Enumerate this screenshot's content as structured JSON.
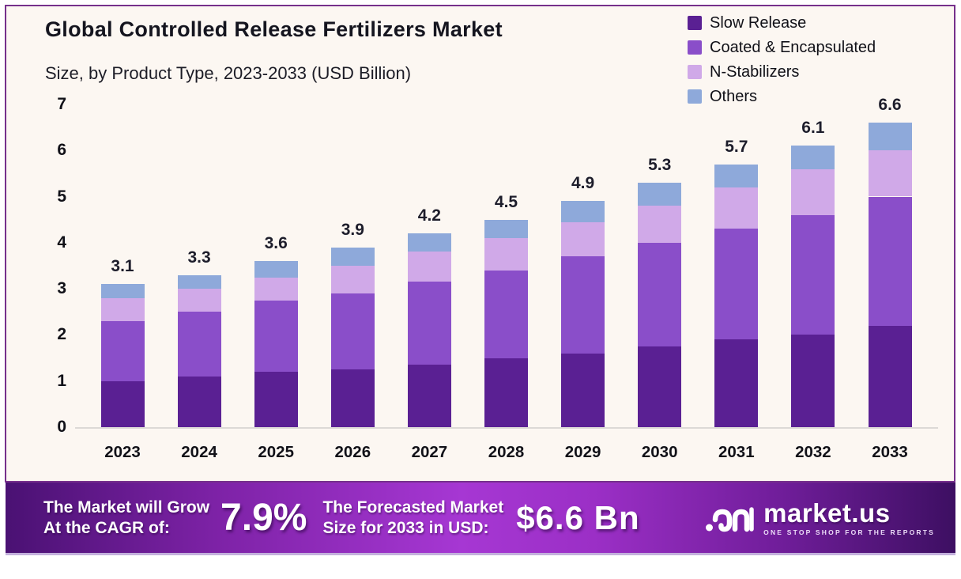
{
  "header": {
    "title": "Global Controlled Release Fertilizers Market",
    "subtitle": "Size, by Product Type, 2023-2033 (USD Billion)"
  },
  "colors": {
    "panel_background": "#fcf7f2",
    "frame_border": "#76308c",
    "banner_gradient_left": "#4a1173",
    "banner_gradient_mid": "#a637d3",
    "banner_gradient_right": "#3d0f62",
    "banner_text": "#ffffff"
  },
  "chart_data": {
    "type": "bar",
    "stacked": true,
    "title": "Global Controlled Release Fertilizers Market",
    "subtitle": "Size, by Product Type, 2023-2033 (USD Billion)",
    "xlabel": "",
    "ylabel": "USD Billion",
    "ylim": [
      0,
      7
    ],
    "yticks": [
      0,
      1,
      2,
      3,
      4,
      5,
      6,
      7
    ],
    "grid": false,
    "legend_position": "top-right",
    "categories": [
      "2023",
      "2024",
      "2025",
      "2026",
      "2027",
      "2028",
      "2029",
      "2030",
      "2031",
      "2032",
      "2033"
    ],
    "series": [
      {
        "name": "Slow Release",
        "color": "#5a2093",
        "values": [
          1.0,
          1.1,
          1.2,
          1.25,
          1.35,
          1.5,
          1.6,
          1.75,
          1.9,
          2.0,
          2.2
        ]
      },
      {
        "name": "Coated & Encapsulated",
        "color": "#8a4ec9",
        "values": [
          1.3,
          1.4,
          1.55,
          1.65,
          1.8,
          1.9,
          2.1,
          2.25,
          2.4,
          2.6,
          2.8
        ]
      },
      {
        "name": "N-Stabilizers",
        "color": "#d0a9e8",
        "values": [
          0.5,
          0.5,
          0.5,
          0.6,
          0.65,
          0.7,
          0.75,
          0.8,
          0.9,
          1.0,
          1.0
        ]
      },
      {
        "name": "Others",
        "color": "#8ea9da",
        "values": [
          0.3,
          0.3,
          0.35,
          0.4,
          0.4,
          0.4,
          0.45,
          0.5,
          0.5,
          0.5,
          0.6
        ]
      }
    ],
    "totals": [
      "3.1",
      "3.3",
      "3.6",
      "3.9",
      "4.2",
      "4.5",
      "4.9",
      "5.3",
      "5.7",
      "6.1",
      "6.6"
    ]
  },
  "footer": {
    "cagr_label_line1": "The Market will Grow",
    "cagr_label_line2": "At the CAGR of:",
    "cagr_value": "7.9%",
    "forecast_label_line1": "The Forecasted Market",
    "forecast_label_line2": "Size for 2033 in USD:",
    "forecast_value": "$6.6 Bn",
    "brand_name": "market.us",
    "brand_tagline": "ONE STOP SHOP FOR THE REPORTS"
  }
}
